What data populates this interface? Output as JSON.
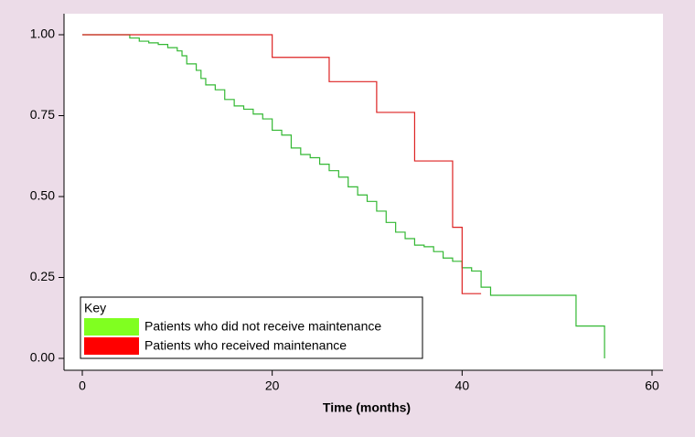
{
  "chart_data": {
    "type": "step",
    "x_label": "Time (months)",
    "xlim": [
      0,
      60
    ],
    "xticks": [
      0,
      20,
      40,
      60
    ],
    "ylim": [
      0,
      1
    ],
    "yticks": [
      {
        "value": 1,
        "label": "1.00"
      },
      {
        "value": 0.75,
        "label": "0.75"
      },
      {
        "value": 0.5,
        "label": "0.50"
      },
      {
        "value": 0.25,
        "label": "0.25"
      },
      {
        "value": 0,
        "label": "0.00"
      }
    ],
    "legend_title": "Key",
    "legend_position": "lower left",
    "series": [
      {
        "name": "Patients who did not receive maintenance",
        "color": "#80ff20",
        "line_color": "#33b833",
        "x": [
          0,
          5,
          6,
          7,
          8,
          9,
          10,
          10.5,
          11,
          12,
          12.5,
          13,
          14,
          15,
          16,
          17,
          18,
          19,
          20,
          21,
          22,
          23,
          24,
          25,
          26,
          27,
          28,
          29,
          30,
          31,
          32,
          33,
          34,
          35,
          36,
          37,
          38,
          39,
          40,
          41,
          42,
          43,
          52,
          55
        ],
        "values": [
          1,
          0.99,
          0.98,
          0.975,
          0.97,
          0.96,
          0.95,
          0.935,
          0.91,
          0.89,
          0.865,
          0.845,
          0.83,
          0.8,
          0.78,
          0.77,
          0.755,
          0.74,
          0.705,
          0.69,
          0.65,
          0.63,
          0.62,
          0.6,
          0.58,
          0.56,
          0.53,
          0.505,
          0.485,
          0.455,
          0.42,
          0.39,
          0.37,
          0.35,
          0.345,
          0.33,
          0.31,
          0.3,
          0.28,
          0.27,
          0.22,
          0.195,
          0.1,
          0
        ]
      },
      {
        "name": "Patients who received maintenance",
        "color": "#ff0000",
        "line_color": "#dd2222",
        "x": [
          0,
          20,
          26,
          31,
          35,
          39,
          40,
          42
        ],
        "values": [
          1,
          0.93,
          0.855,
          0.76,
          0.61,
          0.405,
          0.2,
          0.2
        ]
      }
    ]
  }
}
